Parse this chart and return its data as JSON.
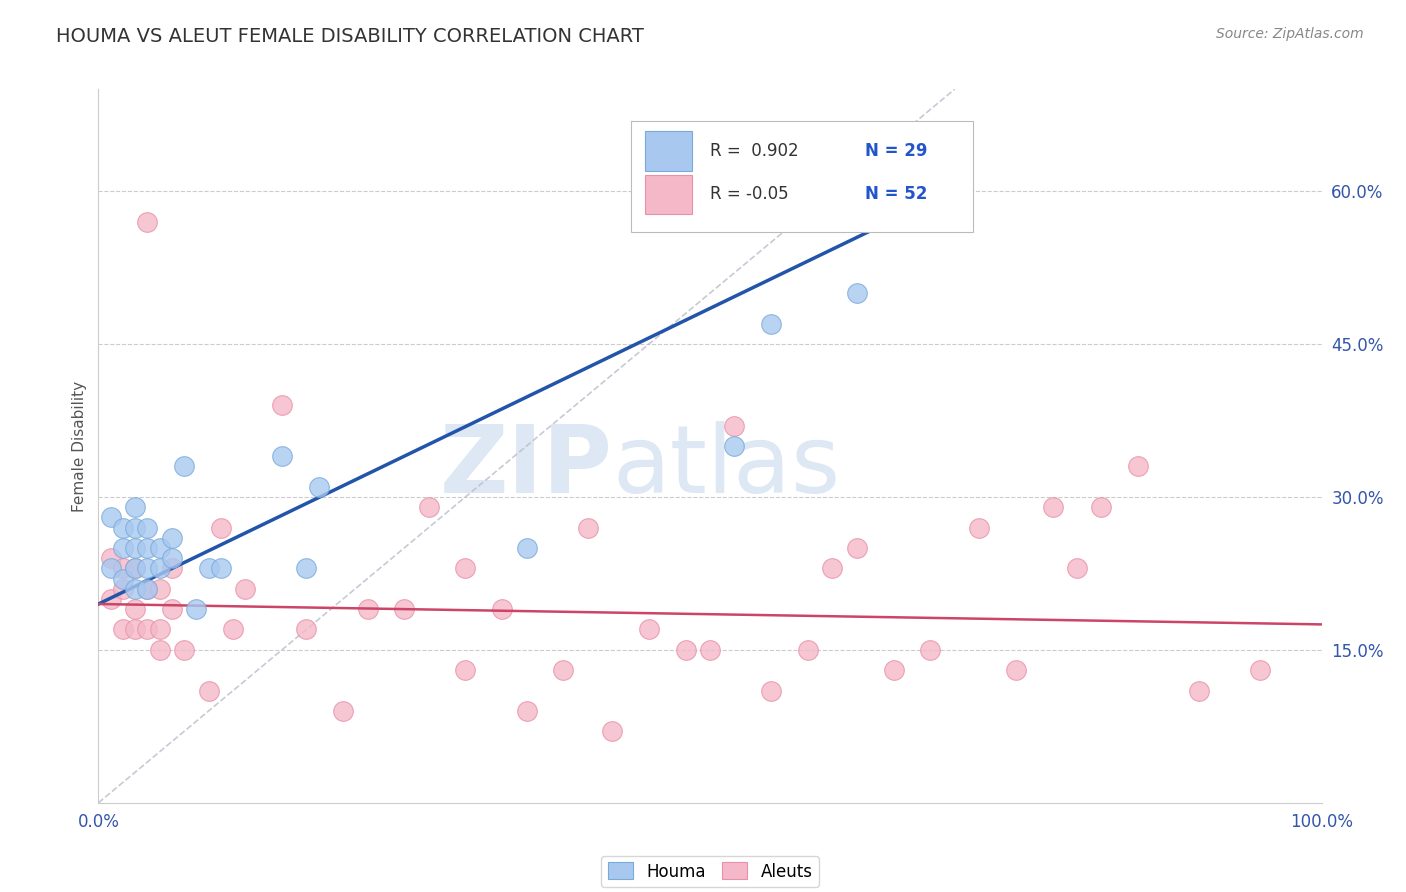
{
  "title": "HOUMA VS ALEUT FEMALE DISABILITY CORRELATION CHART",
  "source": "Source: ZipAtlas.com",
  "ylabel": "Female Disability",
  "xlim": [
    0.0,
    1.0
  ],
  "ylim": [
    0.0,
    0.7
  ],
  "yticks": [
    0.15,
    0.3,
    0.45,
    0.6
  ],
  "yticklabels": [
    "15.0%",
    "30.0%",
    "45.0%",
    "60.0%"
  ],
  "houma_R": 0.902,
  "houma_N": 29,
  "aleut_R": -0.05,
  "aleut_N": 52,
  "houma_color": "#A8C8F0",
  "aleut_color": "#F5B8C8",
  "houma_edge_color": "#7AAAD8",
  "aleut_edge_color": "#E890A8",
  "houma_line_color": "#2255AA",
  "aleut_line_color": "#CC4466",
  "ref_line_color": "#BBBBCC",
  "houma_x": [
    0.01,
    0.01,
    0.02,
    0.02,
    0.02,
    0.03,
    0.03,
    0.03,
    0.03,
    0.03,
    0.04,
    0.04,
    0.04,
    0.04,
    0.05,
    0.05,
    0.06,
    0.06,
    0.07,
    0.08,
    0.09,
    0.1,
    0.15,
    0.17,
    0.18,
    0.35,
    0.52,
    0.55,
    0.62
  ],
  "houma_y": [
    0.23,
    0.28,
    0.22,
    0.25,
    0.27,
    0.21,
    0.23,
    0.25,
    0.27,
    0.29,
    0.21,
    0.23,
    0.25,
    0.27,
    0.23,
    0.25,
    0.24,
    0.26,
    0.33,
    0.19,
    0.23,
    0.23,
    0.34,
    0.23,
    0.31,
    0.25,
    0.35,
    0.47,
    0.5
  ],
  "aleut_x": [
    0.01,
    0.01,
    0.02,
    0.02,
    0.02,
    0.03,
    0.03,
    0.03,
    0.04,
    0.04,
    0.05,
    0.05,
    0.05,
    0.06,
    0.06,
    0.07,
    0.09,
    0.1,
    0.11,
    0.12,
    0.04,
    0.15,
    0.17,
    0.2,
    0.22,
    0.25,
    0.27,
    0.3,
    0.3,
    0.33,
    0.35,
    0.38,
    0.4,
    0.42,
    0.45,
    0.48,
    0.5,
    0.52,
    0.55,
    0.58,
    0.6,
    0.62,
    0.65,
    0.68,
    0.72,
    0.75,
    0.78,
    0.8,
    0.82,
    0.85,
    0.9,
    0.95
  ],
  "aleut_y": [
    0.2,
    0.24,
    0.17,
    0.21,
    0.23,
    0.17,
    0.19,
    0.23,
    0.17,
    0.21,
    0.15,
    0.17,
    0.21,
    0.19,
    0.23,
    0.15,
    0.11,
    0.27,
    0.17,
    0.21,
    0.57,
    0.39,
    0.17,
    0.09,
    0.19,
    0.19,
    0.29,
    0.13,
    0.23,
    0.19,
    0.09,
    0.13,
    0.27,
    0.07,
    0.17,
    0.15,
    0.15,
    0.37,
    0.11,
    0.15,
    0.23,
    0.25,
    0.13,
    0.15,
    0.27,
    0.13,
    0.29,
    0.23,
    0.29,
    0.33,
    0.11,
    0.13
  ],
  "background_color": "#FFFFFF",
  "watermark_color": "#DDE8F4",
  "grid_color": "#CCCCCC"
}
